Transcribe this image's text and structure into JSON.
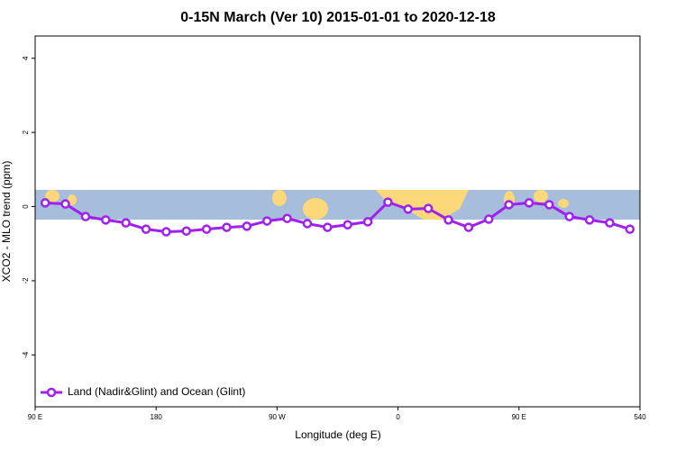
{
  "chart_data": {
    "type": "line",
    "title": "0-15N March (Ver 10)   2015-01-01 to 2020-12-18",
    "xlabel": "Longitude (deg E)",
    "ylabel": "XCO2 - MLO trend (ppm)",
    "x": [
      97.5,
      112.5,
      127.5,
      142.5,
      157.5,
      172.5,
      187.5,
      202.5,
      217.5,
      232.5,
      247.5,
      262.5,
      277.5,
      292.5,
      307.5,
      322.5,
      337.5,
      352.5,
      367.5,
      382.5,
      397.5,
      412.5,
      427.5,
      442.5,
      457.5,
      472.5,
      487.5,
      502.5,
      517.5,
      532.5
    ],
    "series": [
      {
        "name": "Land (Nadir&Glint) and Ocean (Glint)",
        "color": "#a020f0",
        "values": [
          0.1,
          0.07,
          -0.27,
          -0.36,
          -0.44,
          -0.61,
          -0.68,
          -0.66,
          -0.61,
          -0.56,
          -0.53,
          -0.39,
          -0.32,
          -0.46,
          -0.56,
          -0.49,
          -0.41,
          0.12,
          -0.07,
          -0.05,
          -0.36,
          -0.56,
          -0.34,
          0.05,
          0.1,
          0.05,
          -0.27,
          -0.36,
          -0.44,
          -0.61
        ]
      }
    ],
    "xlim": [
      90,
      540
    ],
    "xticks": [
      {
        "value": 90,
        "label": "90 E"
      },
      180,
      {
        "value": 270,
        "label": "90 W"
      },
      {
        "value": 360,
        "label": "0"
      },
      {
        "value": 450,
        "label": "90 E"
      },
      540
    ],
    "ylim": [
      -5.4,
      4.6
    ],
    "yticks": [
      -4,
      -2,
      0,
      2,
      4
    ],
    "legend": "bottom-left"
  }
}
